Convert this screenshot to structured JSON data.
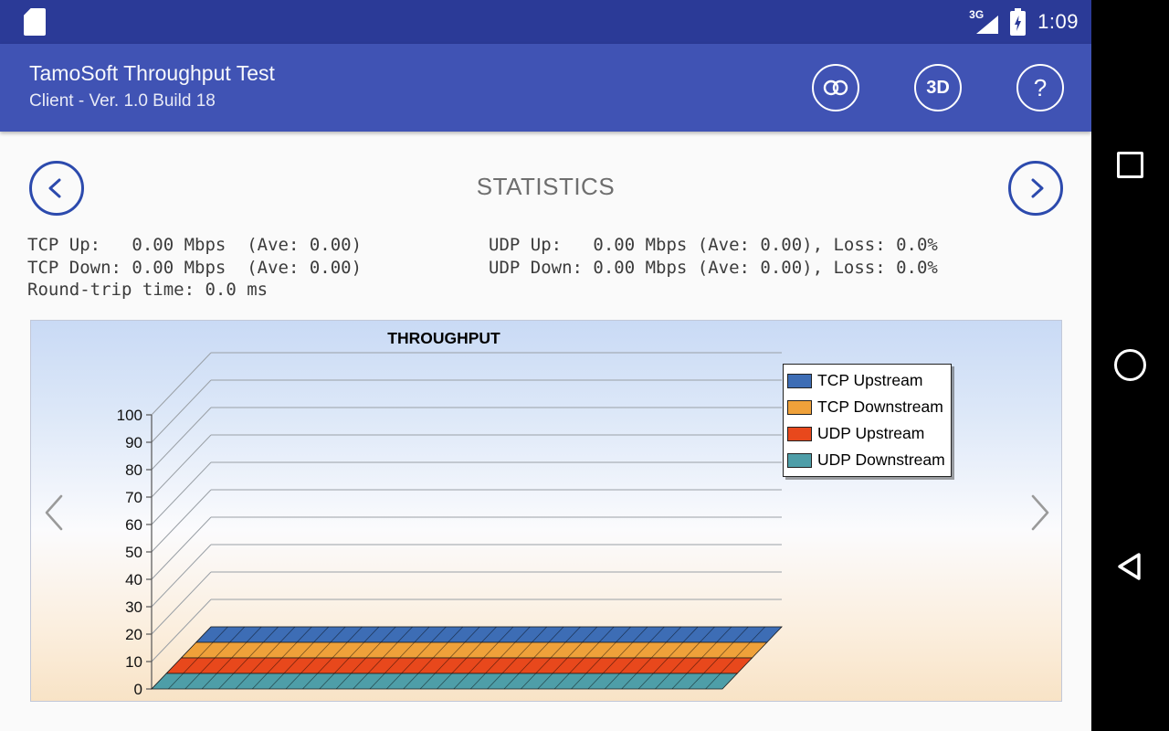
{
  "status_bar": {
    "time": "1:09",
    "network_label": "3G"
  },
  "app_bar": {
    "title": "TamoSoft Throughput Test",
    "subtitle": "Client - Ver. 1.0 Build 18",
    "chart_3d_label": "3D",
    "help_label": "?"
  },
  "page": {
    "title": "STATISTICS"
  },
  "stats": {
    "tcp_up": "TCP Up:   0.00 Mbps  (Ave: 0.00)",
    "tcp_down": "TCP Down: 0.00 Mbps  (Ave: 0.00)",
    "round_trip": "Round-trip time: 0.0 ms",
    "udp_up": "UDP Up:   0.00 Mbps (Ave: 0.00), Loss: 0.0%",
    "udp_down": "UDP Down: 0.00 Mbps (Ave: 0.00), Loss: 0.0%"
  },
  "chart_data": {
    "type": "area",
    "is_3d": true,
    "title": "THROUGHPUT",
    "ylim": [
      0,
      100
    ],
    "y_ticks": [
      0,
      10,
      20,
      30,
      40,
      50,
      60,
      70,
      80,
      90,
      100
    ],
    "x_points": 35,
    "grid": true,
    "legend_position": "top-right",
    "series": [
      {
        "name": "TCP Upstream",
        "color": "#3D6DB5",
        "constant_value": 0.0
      },
      {
        "name": "TCP Downstream",
        "color": "#EFA13A",
        "constant_value": 0.0
      },
      {
        "name": "UDP Upstream",
        "color": "#E8481C",
        "constant_value": 0.0
      },
      {
        "name": "UDP Downstream",
        "color": "#4E9EA8",
        "constant_value": 0.0
      }
    ]
  }
}
